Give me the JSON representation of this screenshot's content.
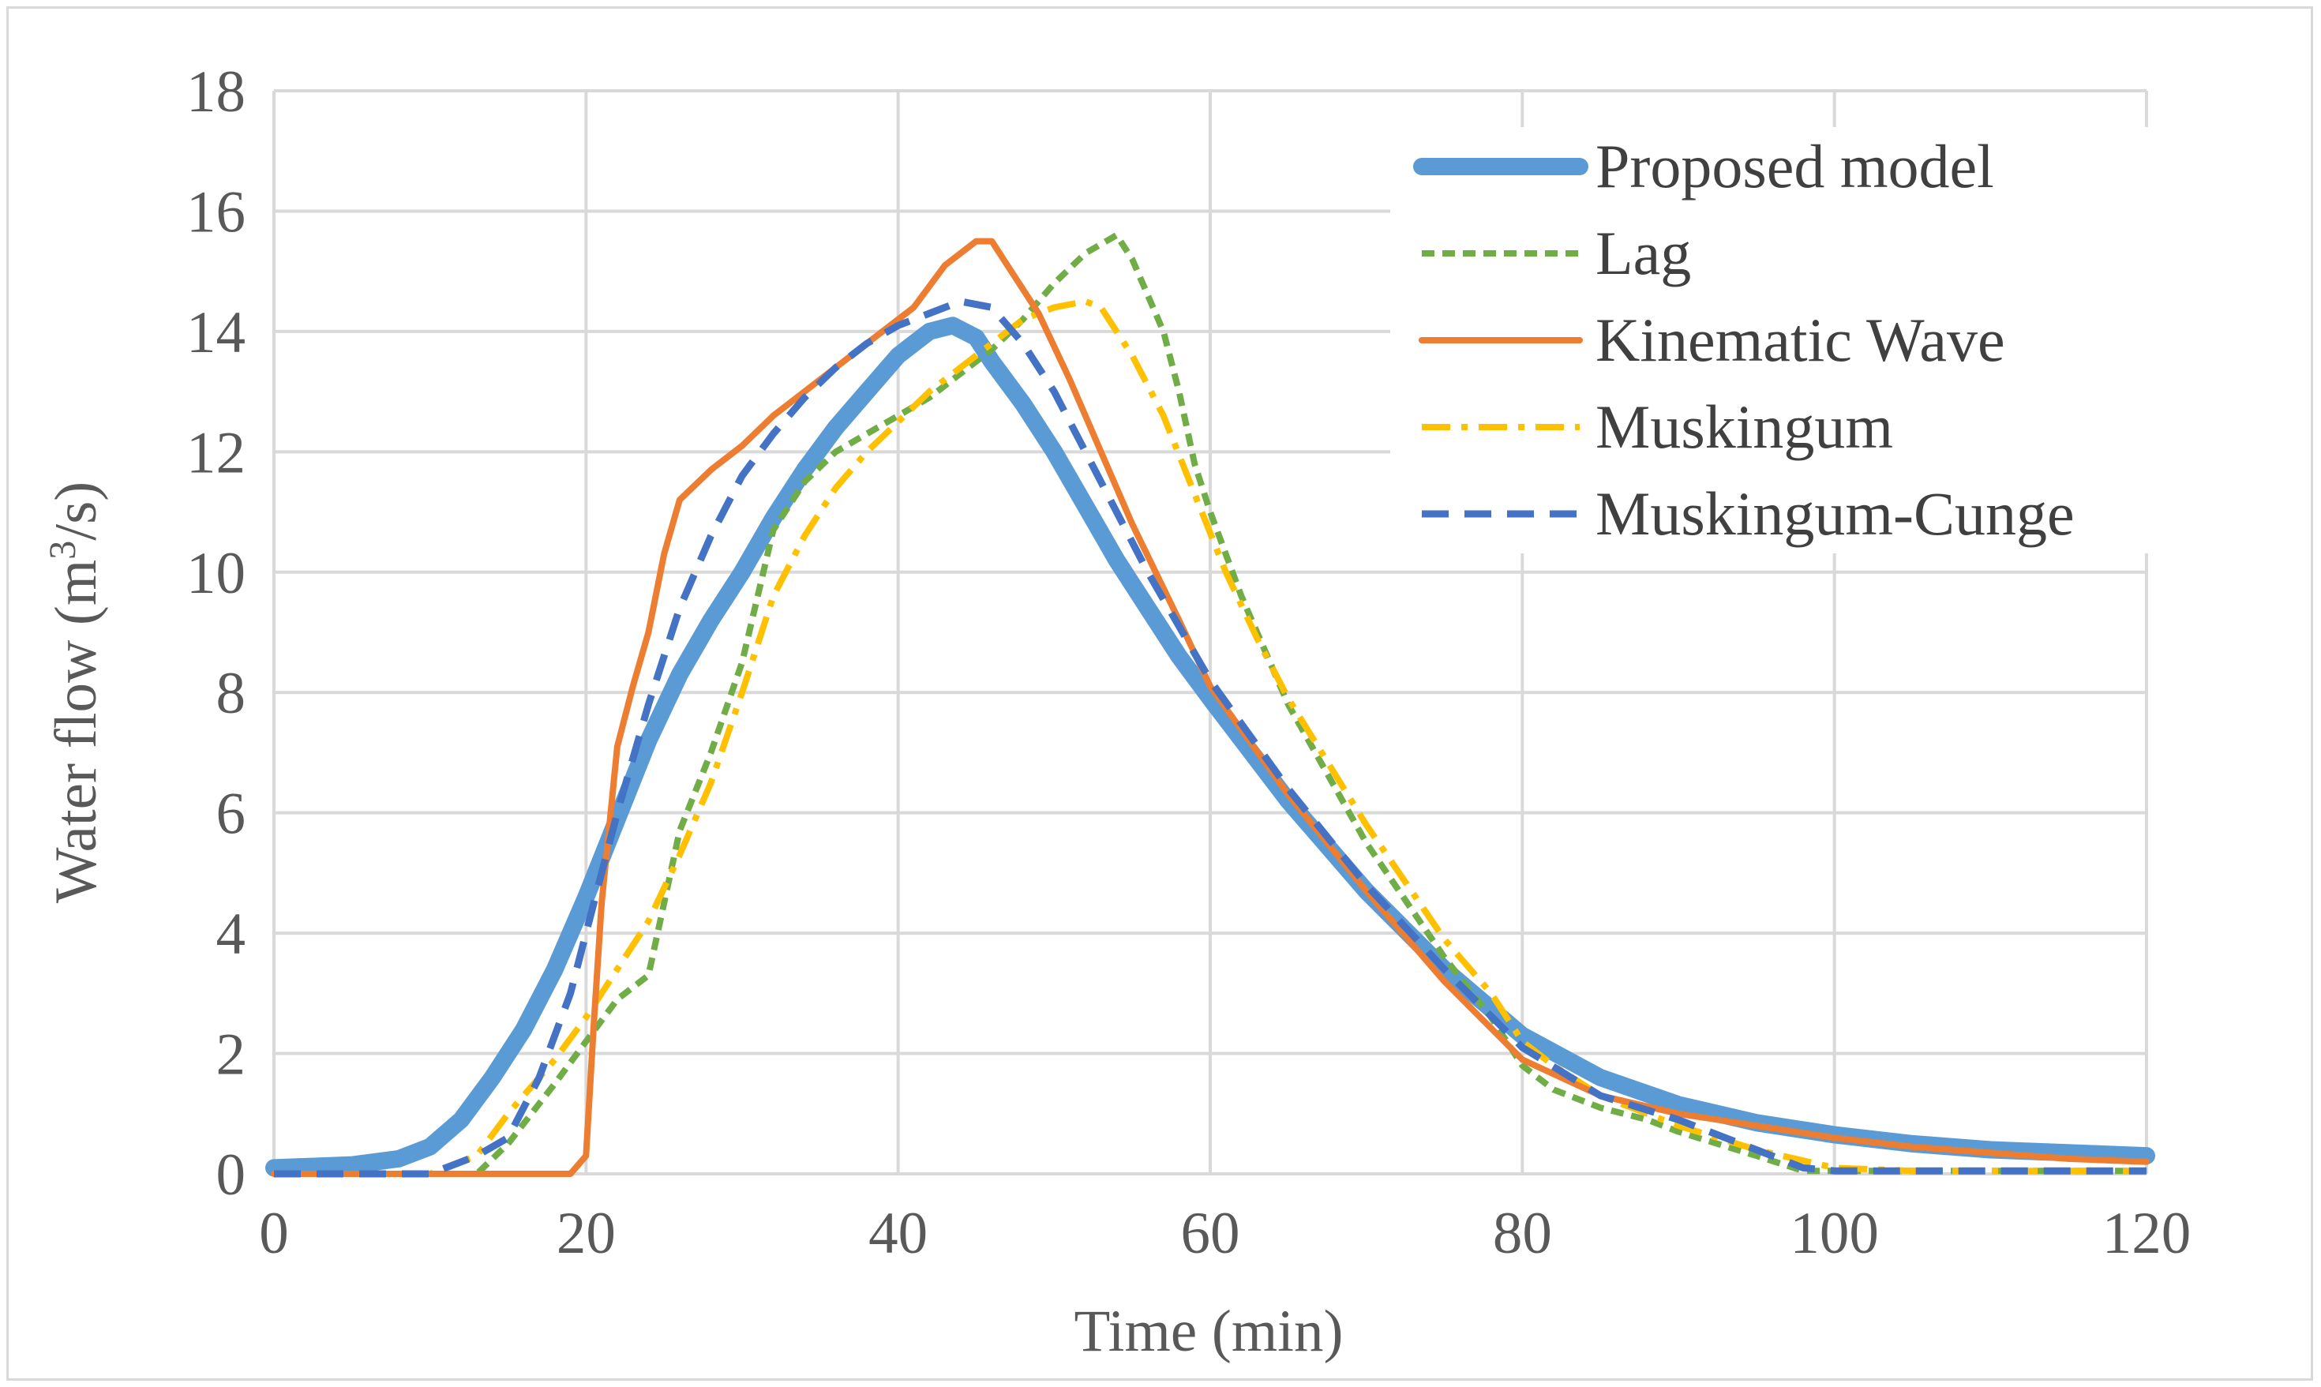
{
  "chart_data": {
    "type": "line",
    "title": "",
    "xlabel": "Time (min)",
    "ylabel_main": "Water flow (m",
    "ylabel_sup": "3",
    "ylabel_tail": "/s)",
    "xlim": [
      0,
      120
    ],
    "ylim": [
      0,
      18
    ],
    "xticks": [
      0,
      20,
      40,
      60,
      80,
      100,
      120
    ],
    "yticks": [
      0,
      2,
      4,
      6,
      8,
      10,
      12,
      14,
      16,
      18
    ],
    "grid": true,
    "legend_position": "top-right",
    "series": [
      {
        "name": "Proposed model",
        "color": "#5b9bd5",
        "style": "solid-thick",
        "points": [
          [
            0,
            0.1
          ],
          [
            5,
            0.15
          ],
          [
            8,
            0.25
          ],
          [
            10,
            0.45
          ],
          [
            12,
            0.9
          ],
          [
            14,
            1.6
          ],
          [
            16,
            2.4
          ],
          [
            18,
            3.4
          ],
          [
            20,
            4.6
          ],
          [
            22,
            5.9
          ],
          [
            24,
            7.2
          ],
          [
            26,
            8.3
          ],
          [
            28,
            9.2
          ],
          [
            30,
            10.0
          ],
          [
            32,
            10.9
          ],
          [
            34,
            11.7
          ],
          [
            36,
            12.4
          ],
          [
            38,
            13.0
          ],
          [
            40,
            13.6
          ],
          [
            42,
            14.0
          ],
          [
            43.5,
            14.1
          ],
          [
            45,
            13.9
          ],
          [
            46,
            13.5
          ],
          [
            48,
            12.8
          ],
          [
            50,
            12.0
          ],
          [
            52,
            11.1
          ],
          [
            54,
            10.2
          ],
          [
            56,
            9.4
          ],
          [
            58,
            8.6
          ],
          [
            60,
            7.9
          ],
          [
            65,
            6.2
          ],
          [
            70,
            4.7
          ],
          [
            75,
            3.4
          ],
          [
            80,
            2.3
          ],
          [
            85,
            1.6
          ],
          [
            90,
            1.15
          ],
          [
            95,
            0.85
          ],
          [
            100,
            0.65
          ],
          [
            105,
            0.5
          ],
          [
            110,
            0.4
          ],
          [
            120,
            0.3
          ]
        ]
      },
      {
        "name": "Lag",
        "color": "#70ad47",
        "style": "short-dash",
        "points": [
          [
            0,
            0
          ],
          [
            13,
            0
          ],
          [
            15,
            0.5
          ],
          [
            18,
            1.5
          ],
          [
            20,
            2.2
          ],
          [
            22,
            2.9
          ],
          [
            24,
            3.3
          ],
          [
            25,
            4.5
          ],
          [
            26,
            5.7
          ],
          [
            28,
            7.0
          ],
          [
            30,
            8.5
          ],
          [
            32,
            10.7
          ],
          [
            34,
            11.5
          ],
          [
            36,
            12.0
          ],
          [
            38,
            12.3
          ],
          [
            40,
            12.6
          ],
          [
            42,
            12.9
          ],
          [
            44,
            13.3
          ],
          [
            46,
            13.7
          ],
          [
            48,
            14.2
          ],
          [
            50,
            14.8
          ],
          [
            52,
            15.3
          ],
          [
            54,
            15.6
          ],
          [
            55,
            15.2
          ],
          [
            57,
            14.0
          ],
          [
            58,
            13.0
          ],
          [
            59,
            11.8
          ],
          [
            60,
            11.0
          ],
          [
            62,
            9.6
          ],
          [
            65,
            7.8
          ],
          [
            70,
            5.5
          ],
          [
            75,
            3.6
          ],
          [
            78,
            2.6
          ],
          [
            80,
            1.8
          ],
          [
            82,
            1.4
          ],
          [
            85,
            1.1
          ],
          [
            88,
            0.9
          ],
          [
            90,
            0.7
          ],
          [
            95,
            0.3
          ],
          [
            98,
            0.05
          ],
          [
            120,
            0.05
          ]
        ]
      },
      {
        "name": "Kinematic Wave",
        "color": "#ed7d31",
        "style": "solid",
        "points": [
          [
            0,
            0
          ],
          [
            19,
            0
          ],
          [
            20,
            0.3
          ],
          [
            20.5,
            2.5
          ],
          [
            21,
            4.5
          ],
          [
            22,
            7.1
          ],
          [
            23,
            8.1
          ],
          [
            24,
            9.0
          ],
          [
            25,
            10.3
          ],
          [
            26,
            11.2
          ],
          [
            28,
            11.7
          ],
          [
            30,
            12.1
          ],
          [
            32,
            12.6
          ],
          [
            34,
            13.0
          ],
          [
            36,
            13.4
          ],
          [
            38,
            13.8
          ],
          [
            40,
            14.2
          ],
          [
            41,
            14.4
          ],
          [
            43,
            15.1
          ],
          [
            45,
            15.5
          ],
          [
            46,
            15.5
          ],
          [
            47,
            15.1
          ],
          [
            49,
            14.3
          ],
          [
            51,
            13.2
          ],
          [
            53,
            12.0
          ],
          [
            55,
            10.8
          ],
          [
            58,
            9.2
          ],
          [
            60,
            8.1
          ],
          [
            65,
            6.3
          ],
          [
            70,
            4.7
          ],
          [
            75,
            3.2
          ],
          [
            80,
            1.9
          ],
          [
            85,
            1.3
          ],
          [
            90,
            1.0
          ],
          [
            95,
            0.8
          ],
          [
            100,
            0.6
          ],
          [
            105,
            0.45
          ],
          [
            110,
            0.35
          ],
          [
            115,
            0.25
          ],
          [
            120,
            0.2
          ]
        ]
      },
      {
        "name": "Muskingum",
        "color": "#ffc000",
        "style": "dash-dot",
        "points": [
          [
            0,
            0
          ],
          [
            10,
            0
          ],
          [
            13,
            0.3
          ],
          [
            15,
            1.0
          ],
          [
            18,
            1.9
          ],
          [
            20,
            2.6
          ],
          [
            22,
            3.4
          ],
          [
            24,
            4.2
          ],
          [
            26,
            5.3
          ],
          [
            28,
            6.5
          ],
          [
            30,
            8.0
          ],
          [
            32,
            9.6
          ],
          [
            34,
            10.6
          ],
          [
            36,
            11.4
          ],
          [
            38,
            12.0
          ],
          [
            40,
            12.5
          ],
          [
            42,
            13.0
          ],
          [
            44,
            13.4
          ],
          [
            46,
            13.8
          ],
          [
            48,
            14.2
          ],
          [
            50,
            14.4
          ],
          [
            52,
            14.5
          ],
          [
            53,
            14.4
          ],
          [
            55,
            13.6
          ],
          [
            57,
            12.6
          ],
          [
            59,
            11.3
          ],
          [
            61,
            10.0
          ],
          [
            63,
            8.9
          ],
          [
            65,
            7.9
          ],
          [
            70,
            5.8
          ],
          [
            75,
            3.9
          ],
          [
            78,
            3.0
          ],
          [
            80,
            2.2
          ],
          [
            82,
            1.8
          ],
          [
            85,
            1.3
          ],
          [
            90,
            0.8
          ],
          [
            95,
            0.4
          ],
          [
            100,
            0.1
          ],
          [
            105,
            0.05
          ],
          [
            120,
            0.05
          ]
        ]
      },
      {
        "name": "Muskingum-Cunge",
        "color": "#4472c4",
        "style": "long-dash",
        "points": [
          [
            0,
            0
          ],
          [
            10,
            0
          ],
          [
            13,
            0.3
          ],
          [
            15,
            0.6
          ],
          [
            17,
            1.6
          ],
          [
            19,
            3.0
          ],
          [
            20,
            4.0
          ],
          [
            22,
            6.0
          ],
          [
            24,
            7.8
          ],
          [
            26,
            9.4
          ],
          [
            28,
            10.6
          ],
          [
            30,
            11.6
          ],
          [
            32,
            12.3
          ],
          [
            34,
            12.9
          ],
          [
            36,
            13.4
          ],
          [
            38,
            13.8
          ],
          [
            40,
            14.1
          ],
          [
            42,
            14.3
          ],
          [
            44,
            14.5
          ],
          [
            46,
            14.4
          ],
          [
            48,
            13.8
          ],
          [
            50,
            13.0
          ],
          [
            52,
            12.0
          ],
          [
            54,
            11.0
          ],
          [
            56,
            10.0
          ],
          [
            58,
            9.1
          ],
          [
            60,
            8.2
          ],
          [
            65,
            6.4
          ],
          [
            70,
            4.8
          ],
          [
            75,
            3.4
          ],
          [
            80,
            2.1
          ],
          [
            85,
            1.3
          ],
          [
            90,
            0.9
          ],
          [
            95,
            0.4
          ],
          [
            98,
            0.1
          ],
          [
            100,
            0.05
          ],
          [
            120,
            0.05
          ]
        ]
      }
    ]
  }
}
